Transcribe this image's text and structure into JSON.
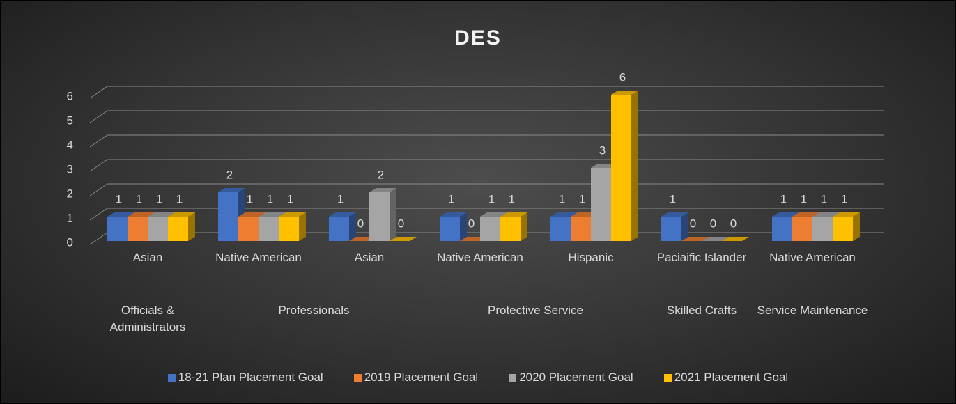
{
  "chart_data": {
    "type": "bar3d",
    "title": "DES",
    "groups": [
      {
        "label": "Officials & Administrators",
        "categories": [
          "Asian"
        ]
      },
      {
        "label": "Professionals",
        "categories": [
          "Native American",
          "Asian"
        ]
      },
      {
        "label": "Protective Service",
        "categories": [
          "Native American",
          "Hispanic"
        ]
      },
      {
        "label": "Skilled Crafts",
        "categories": [
          "Paciaific Islander"
        ]
      },
      {
        "label": "Service Maintenance",
        "categories": [
          "Native American"
        ]
      }
    ],
    "series": [
      {
        "name": "18-21 Plan Placement Goal",
        "color": "#4472c4",
        "values": [
          1,
          2,
          1,
          1,
          1,
          1,
          1
        ]
      },
      {
        "name": "2019 Placement Goal",
        "color": "#ed7d31",
        "values": [
          1,
          1,
          0,
          0,
          1,
          0,
          1
        ]
      },
      {
        "name": "2020 Placement Goal",
        "color": "#a5a5a5",
        "values": [
          1,
          1,
          2,
          1,
          3,
          0,
          1
        ]
      },
      {
        "name": "2021 Placement Goal",
        "color": "#ffc000",
        "values": [
          1,
          1,
          0,
          1,
          6,
          0,
          1
        ]
      }
    ],
    "ylim": [
      0,
      6
    ],
    "yticks": [
      0,
      1,
      2,
      3,
      4,
      5,
      6
    ],
    "grid": true,
    "legend": "bottom"
  }
}
